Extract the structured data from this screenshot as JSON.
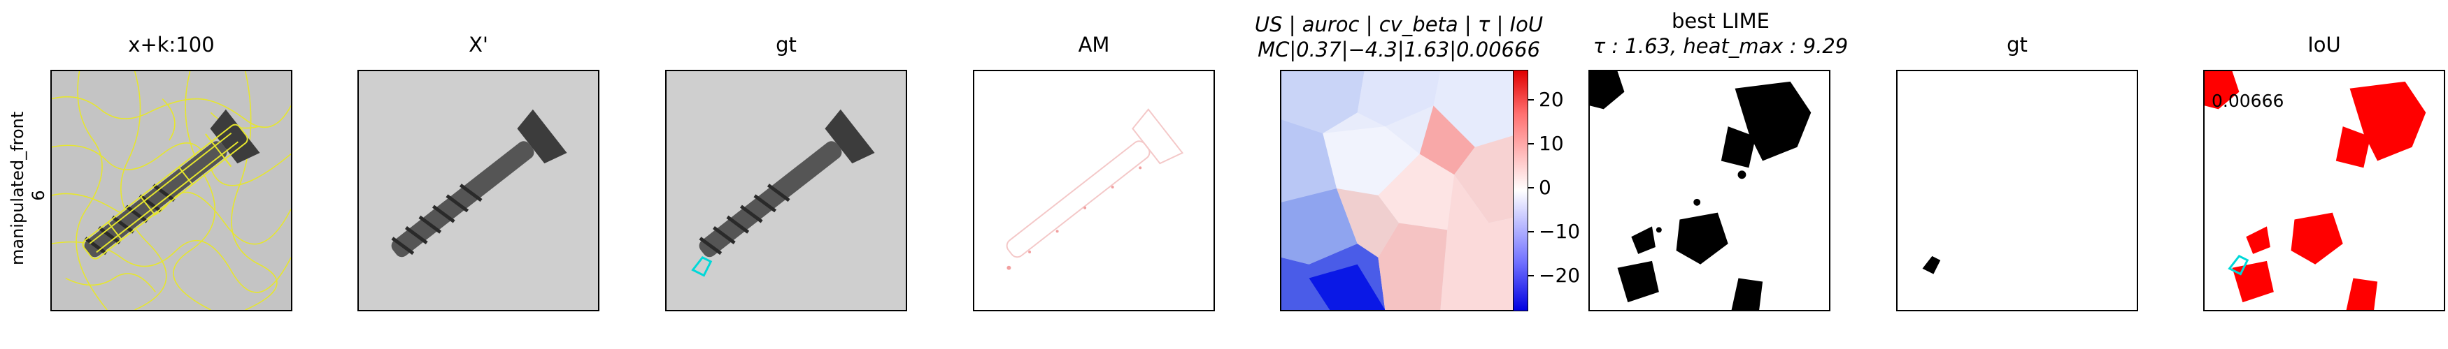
{
  "row_label": "manipulated_front\n6",
  "panels": [
    {
      "title": "x+k:100"
    },
    {
      "title": "X'"
    },
    {
      "title": "gt"
    },
    {
      "title": "AM"
    },
    {
      "title_line1": "US | auroc | cv_beta | τ | IoU",
      "title_line2": "MC|0.37|−4.3|1.63|0.00666"
    },
    {
      "title_line1": "best LIME",
      "title_line2": "τ : 1.63, heat_max : 9.29"
    },
    {
      "title": "gt"
    },
    {
      "title": "IoU",
      "overlay_text": "0.00666"
    }
  ],
  "colorbar": {
    "ticks": [
      "20",
      "10",
      "0",
      "−10",
      "−20"
    ],
    "colors": {
      "high": "#e00000",
      "mid": "#ffffff",
      "low": "#0000e0"
    }
  },
  "colors": {
    "outline": "#e6e62e",
    "gt_outline": "#00d8d8",
    "iou_red": "#ff0000"
  }
}
